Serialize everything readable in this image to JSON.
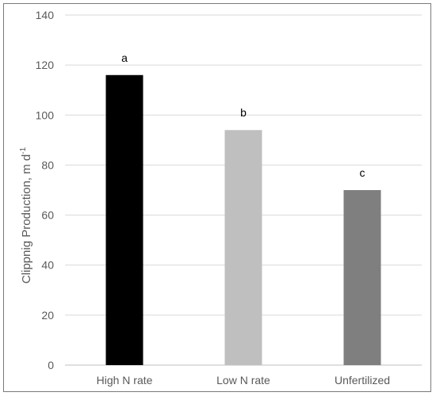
{
  "chart_data": {
    "type": "bar",
    "categories": [
      "High N rate",
      "Low N rate",
      "Unfertilized"
    ],
    "values": [
      116,
      94,
      70
    ],
    "letters": [
      "a",
      "b",
      "c"
    ],
    "colors": [
      "#000000",
      "#bfbfbf",
      "#7f7f7f"
    ],
    "ylabel": "Clippnig Production, m d",
    "ylabel_superscript": "-1",
    "ylim": [
      0,
      140
    ],
    "yticks": [
      0,
      20,
      40,
      60,
      80,
      100,
      120,
      140
    ],
    "grid": true,
    "gridColor": "#d9d9d9",
    "axisColor": "#bfbfbf"
  }
}
